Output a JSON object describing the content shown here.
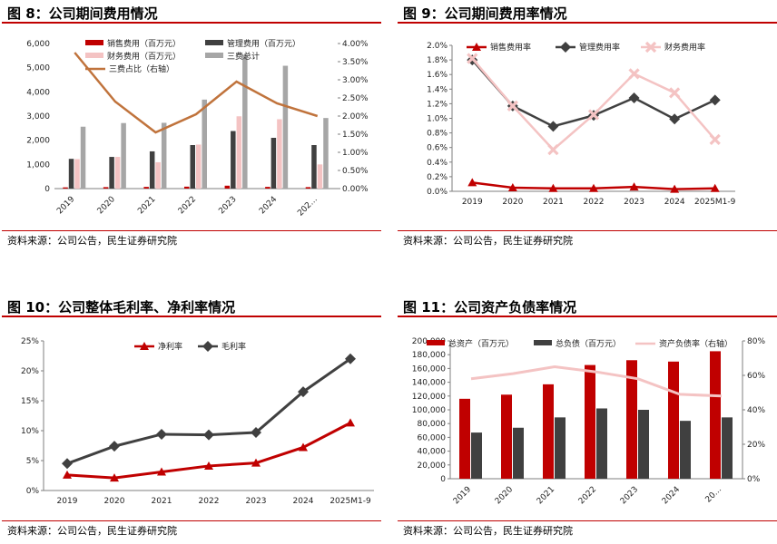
{
  "panels": [
    {
      "title": "图 8：公司期间费用情况",
      "source": "资料来源：公司公告，民生证券研究院",
      "chart_data": {
        "type": "bar",
        "categories": [
          "2019",
          "2020",
          "2021",
          "2022",
          "2023",
          "2024",
          "202…"
        ],
        "ylim": [
          0,
          6000
        ],
        "y_ticks": [
          "0",
          "1,000",
          "2,000",
          "3,000",
          "4,000",
          "5,000",
          "6,000"
        ],
        "y2lim": [
          0,
          4
        ],
        "y2_ticks": [
          "0.00%",
          "0.50%",
          "1.00%",
          "1.50%",
          "2.00%",
          "2.50%",
          "3.00%",
          "3.50%",
          "4.00%"
        ],
        "legend_position": "top",
        "series": [
          {
            "name": "销售费用（百万元）",
            "kind": "bar",
            "color": "#c00000",
            "values": [
              50,
              60,
              70,
              80,
              120,
              70,
              60
            ]
          },
          {
            "name": "管理费用（百万元）",
            "kind": "bar",
            "color": "#404040",
            "values": [
              1230,
              1310,
              1540,
              1800,
              2380,
              2100,
              1800
            ]
          },
          {
            "name": "财务费用（百万元）",
            "kind": "bar",
            "color": "#f4c3c3",
            "values": [
              1220,
              1310,
              1090,
              1820,
              2990,
              2870,
              1000
            ]
          },
          {
            "name": "三费总计",
            "kind": "bar",
            "color": "#a6a6a6",
            "values": [
              2560,
              2710,
              2720,
              3680,
              5530,
              5080,
              2920
            ]
          },
          {
            "name": "三费占比（右轴）",
            "kind": "line",
            "axis": "right",
            "color": "#c0733c",
            "values": [
              3.75,
              2.4,
              1.55,
              2.05,
              2.95,
              2.35,
              2.0
            ]
          }
        ]
      }
    },
    {
      "title": "图 9：公司期间费用率情况",
      "source": "资料来源：公司公告，民生证券研究院",
      "chart_data": {
        "type": "line",
        "categories": [
          "2019",
          "2020",
          "2021",
          "2022",
          "2023",
          "2024",
          "2025M1-9"
        ],
        "ylim": [
          0,
          2
        ],
        "y_ticks": [
          "0.0%",
          "0.2%",
          "0.4%",
          "0.6%",
          "0.8%",
          "1.0%",
          "1.2%",
          "1.4%",
          "1.6%",
          "1.8%",
          "2.0%"
        ],
        "legend_position": "top",
        "series": [
          {
            "name": "销售费用率",
            "color": "#c00000",
            "marker": "triangle",
            "values": [
              0.12,
              0.05,
              0.04,
              0.04,
              0.06,
              0.03,
              0.04
            ]
          },
          {
            "name": "管理费用率",
            "color": "#404040",
            "marker": "diamond",
            "values": [
              1.8,
              1.17,
              0.89,
              1.04,
              1.28,
              0.99,
              1.25
            ]
          },
          {
            "name": "财务费用率",
            "color": "#f4c3c3",
            "marker": "cross",
            "values": [
              1.82,
              1.17,
              0.57,
              1.05,
              1.61,
              1.35,
              0.71
            ]
          }
        ]
      }
    },
    {
      "title": "图 10：公司整体毛利率、净利率情况",
      "source": "资料来源：公司公告，民生证券研究院",
      "chart_data": {
        "type": "line",
        "categories": [
          "2019",
          "2020",
          "2021",
          "2022",
          "2023",
          "2024",
          "2025M1-9"
        ],
        "ylim": [
          0,
          25
        ],
        "y_ticks": [
          "0%",
          "5%",
          "10%",
          "15%",
          "20%",
          "25%"
        ],
        "legend_position": "top",
        "series": [
          {
            "name": "净利率",
            "color": "#c00000",
            "marker": "triangle",
            "values": [
              2.6,
              2.1,
              3.1,
              4.1,
              4.6,
              7.2,
              11.3
            ]
          },
          {
            "name": "毛利率",
            "color": "#404040",
            "marker": "diamond",
            "values": [
              4.5,
              7.4,
              9.4,
              9.3,
              9.7,
              16.5,
              22.0
            ]
          }
        ]
      }
    },
    {
      "title": "图 11：公司资产负债率情况",
      "source": "资料来源：公司公告，民生证券研究院",
      "chart_data": {
        "type": "bar",
        "categories": [
          "2019",
          "2020",
          "2021",
          "2022",
          "2023",
          "2024",
          "20…"
        ],
        "ylim": [
          0,
          200000
        ],
        "y_ticks": [
          "0",
          "20,000",
          "40,000",
          "60,000",
          "80,000",
          "100,000",
          "120,000",
          "140,000",
          "160,000",
          "180,000",
          "200,000"
        ],
        "y2lim": [
          0,
          80
        ],
        "y2_ticks": [
          "0%",
          "20%",
          "40%",
          "60%",
          "80%"
        ],
        "legend_position": "top",
        "series": [
          {
            "name": "总资产（百万元）",
            "kind": "bar",
            "color": "#c00000",
            "values": [
              116000,
              122000,
              137000,
              165000,
              172000,
              170000,
              185000
            ]
          },
          {
            "name": "总负债（百万元）",
            "kind": "bar",
            "color": "#404040",
            "values": [
              67000,
              74000,
              89000,
              102000,
              100000,
              84000,
              89000
            ]
          },
          {
            "name": "资产负债率（右轴）",
            "kind": "line",
            "axis": "right",
            "color": "#f4c3c3",
            "values": [
              58,
              61,
              65,
              62,
              58,
              49,
              48
            ]
          }
        ]
      }
    }
  ]
}
